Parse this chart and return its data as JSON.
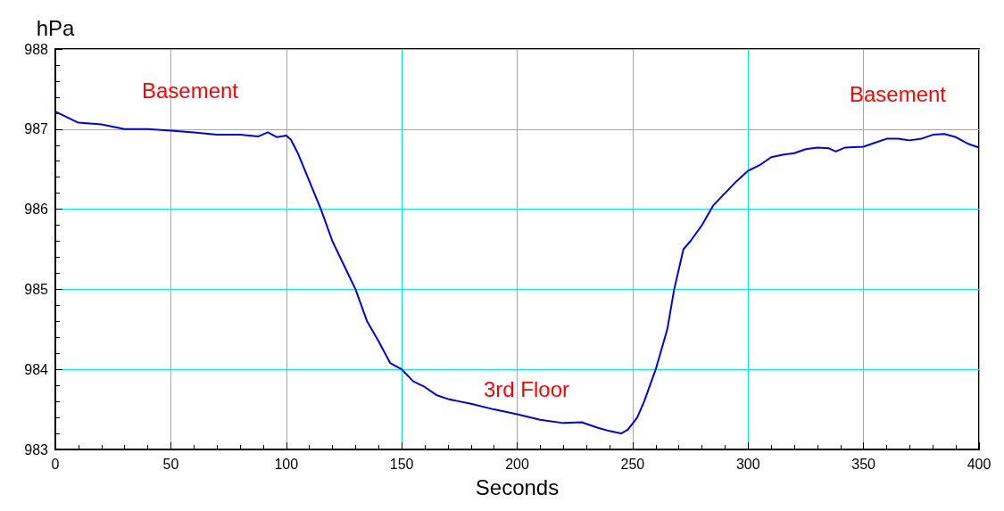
{
  "chart_data": {
    "type": "line",
    "xlabel": "Seconds",
    "ylabel": "hPa",
    "x": [
      0,
      10,
      20,
      30,
      40,
      50,
      60,
      70,
      80,
      88,
      92,
      96,
      100,
      102,
      105,
      110,
      115,
      120,
      125,
      130,
      135,
      140,
      145,
      150,
      155,
      160,
      165,
      170,
      175,
      180,
      190,
      200,
      210,
      220,
      228,
      235,
      240,
      245,
      248,
      252,
      255,
      260,
      265,
      268,
      272,
      275,
      280,
      285,
      290,
      295,
      300,
      305,
      310,
      315,
      320,
      325,
      330,
      335,
      338,
      342,
      350,
      355,
      360,
      365,
      370,
      375,
      380,
      385,
      390,
      395,
      400
    ],
    "series": [
      {
        "color": "#0000ee",
        "values": [
          987.22,
          987.08,
          987.06,
          987.0,
          987.0,
          986.98,
          986.96,
          986.93,
          986.93,
          986.91,
          986.96,
          986.9,
          986.92,
          986.87,
          986.7,
          986.35,
          986.0,
          985.6,
          985.3,
          985.0,
          984.6,
          984.35,
          984.08,
          984.0,
          983.85,
          983.78,
          983.68,
          983.63,
          983.6,
          983.57,
          983.5,
          983.44,
          983.37,
          983.33,
          983.34,
          983.27,
          983.23,
          983.2,
          983.25,
          983.4,
          983.6,
          984.0,
          984.5,
          985.0,
          985.5,
          985.6,
          985.8,
          986.05,
          986.2,
          986.35,
          986.48,
          986.55,
          986.65,
          986.68,
          986.7,
          986.75,
          986.77,
          986.76,
          986.72,
          986.77,
          986.78,
          986.83,
          986.88,
          986.88,
          986.86,
          986.88,
          986.93,
          986.94,
          986.9,
          986.82,
          986.77
        ]
      }
    ],
    "xlim": [
      0,
      400
    ],
    "xticks": [
      0,
      50,
      100,
      150,
      200,
      250,
      300,
      350,
      400
    ],
    "ylim": [
      983,
      988
    ],
    "yticks": [
      983,
      984,
      985,
      986,
      987,
      988
    ],
    "grid": true,
    "marker": "none",
    "line_style": "solid",
    "annotations": [
      "Basement",
      "3rd Floor",
      "Basement"
    ]
  }
}
